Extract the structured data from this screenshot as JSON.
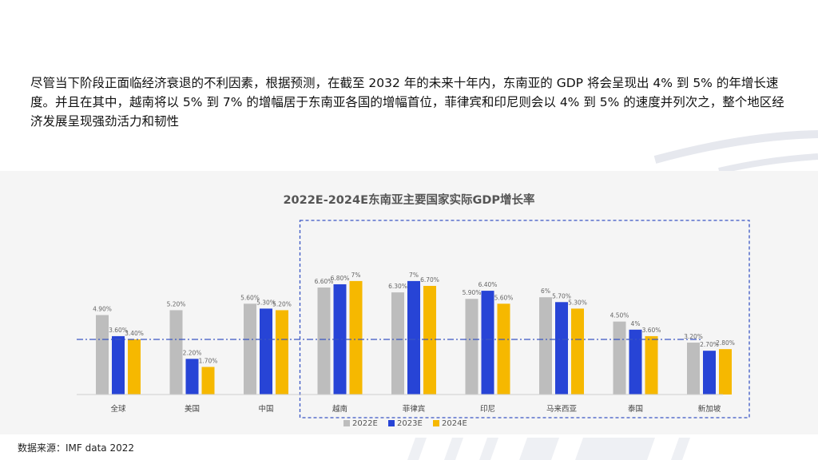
{
  "intro_text": "尽管当下阶段正面临经济衰退的不利因素，根据预测，在截至 2032 年的未来十年内，东南亚的 GDP 将会呈现出 4% 到 5% 的年增长速度。并且在其中，越南将以 5% 到 7% 的增幅居于东南亚各国的增幅首位，菲律宾和印尼则会以 4% 到 5% 的速度并列次之，整个地区经济发展呈现强劲活力和韧性",
  "source": "数据来源：IMF data 2022",
  "colors": {
    "series_2022": "#bdbdbd",
    "series_2023": "#2744d6",
    "series_2024": "#f6b800",
    "reference": "#3a56c4",
    "highlight_box": "#3a56c4"
  },
  "chart_data": {
    "type": "bar",
    "title": "2022E-2024E东南亚主要国家实际GDP增长率",
    "categories": [
      "全球",
      "美国",
      "中国",
      "越南",
      "菲律宾",
      "印尼",
      "马来西亚",
      "泰国",
      "新加坡"
    ],
    "series": [
      {
        "name": "2022E",
        "values": [
          4.9,
          5.2,
          5.6,
          6.6,
          6.3,
          5.9,
          6.0,
          4.5,
          3.2
        ],
        "labels": [
          "4.90%",
          "5.20%",
          "5.60%",
          "6.60%",
          "6.30%",
          "5.90%",
          "6%",
          "4.50%",
          "3.20%"
        ]
      },
      {
        "name": "2023E",
        "values": [
          3.6,
          2.2,
          5.3,
          6.8,
          7.0,
          6.4,
          5.7,
          4.0,
          2.7
        ],
        "labels": [
          "3.60%",
          "2.20%",
          "5.30%",
          "6.80%",
          "7%",
          "6.40%",
          "5.70%",
          "4%",
          "2.70%"
        ]
      },
      {
        "name": "2024E",
        "values": [
          3.4,
          1.7,
          5.2,
          7.0,
          6.7,
          5.6,
          5.3,
          3.6,
          2.8
        ],
        "labels": [
          "3.40%",
          "1.70%",
          "5.20%",
          "7%",
          "6.70%",
          "5.60%",
          "5.30%",
          "3.60%",
          "2.80%"
        ]
      }
    ],
    "reference_line": 3.4,
    "highlighted_categories": [
      "越南",
      "菲律宾",
      "印尼",
      "马来西亚",
      "泰国",
      "新加坡"
    ],
    "ylim": [
      0,
      7.5
    ],
    "legend_position": "bottom-center",
    "grid": false
  }
}
